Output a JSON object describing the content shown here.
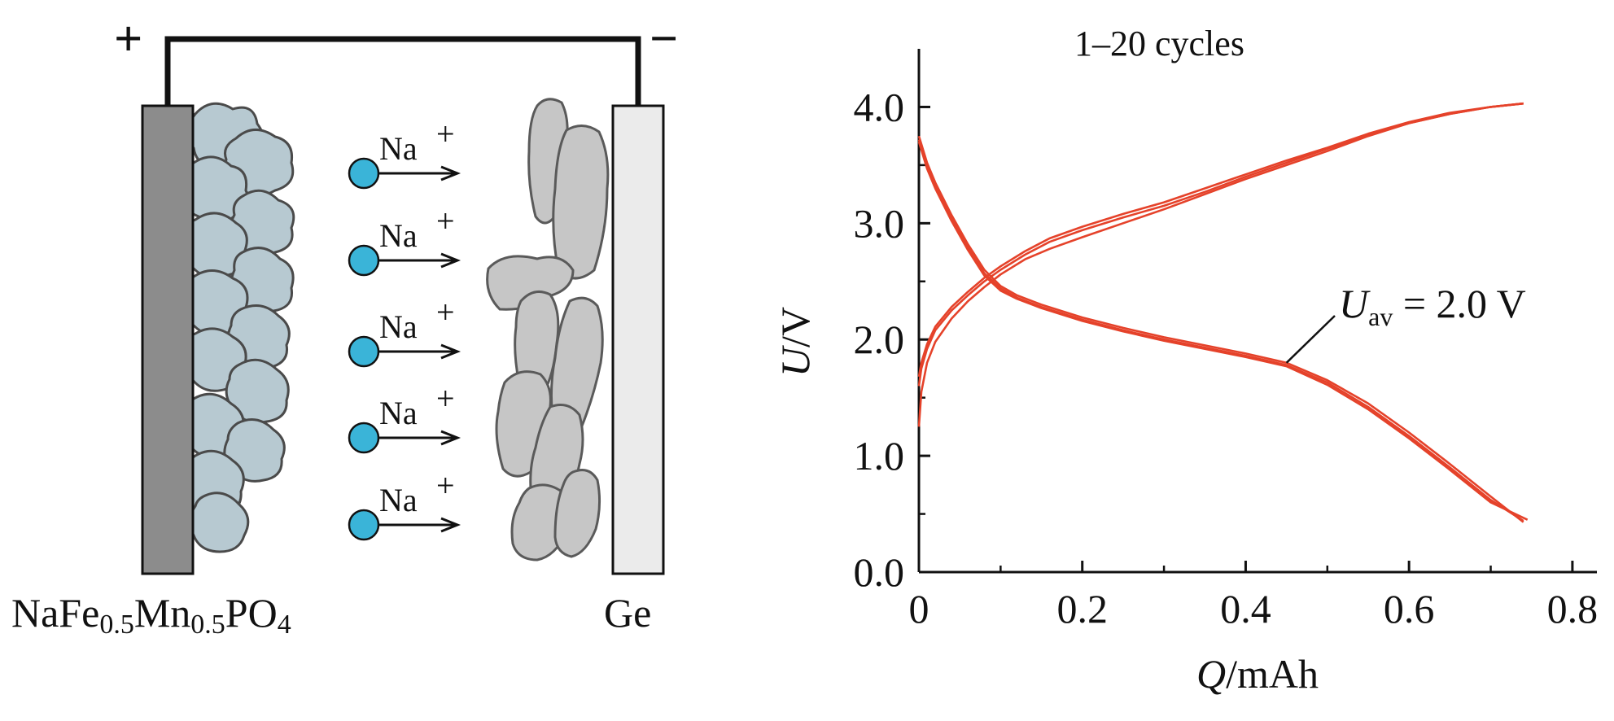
{
  "diagram": {
    "positive_sign": "+",
    "negative_sign": "−",
    "ion_labels": [
      "Na",
      "Na",
      "Na",
      "Na",
      "Na"
    ],
    "ion_charge": "+",
    "cathode_label": {
      "parts": [
        "NaFe",
        "0.5",
        "Mn",
        "0.5",
        "PO",
        "4"
      ]
    },
    "anode_label": "Ge",
    "colors": {
      "cathode_electrode": "#8c8c8c",
      "cathode_particles": "#b7c9d1",
      "anode_electrode": "#ebebeb",
      "anode_particles": "#c6c6c6",
      "ion": "#3ab4d8",
      "wire": "#111111"
    },
    "icon_names": [
      "sodium-ion-icon",
      "arrow-right-icon"
    ]
  },
  "chart_data": {
    "type": "line",
    "title": "1–20 cycles",
    "xlabel": {
      "italic": "Q",
      "rest": "/mAh"
    },
    "ylabel": {
      "italic": "U",
      "rest": "/V"
    },
    "xlim": [
      0,
      0.83
    ],
    "ylim": [
      0,
      4.5
    ],
    "xticks": [
      0,
      0.2,
      0.4,
      0.6,
      0.8
    ],
    "xtick_labels": [
      "0",
      "0.2",
      "0.4",
      "0.6",
      "0.8"
    ],
    "yticks": [
      0,
      1,
      2,
      3,
      4
    ],
    "ytick_labels": [
      "0.0",
      "1.0",
      "2.0",
      "3.0",
      "4.0"
    ],
    "minor_xticks": [
      0.1,
      0.3,
      0.5,
      0.7
    ],
    "minor_yticks": [
      0.5,
      1.5,
      2.5,
      3.5
    ],
    "grid": false,
    "line_color": "#e5422a",
    "annotation": {
      "text_italic": "U",
      "subscript": "av",
      "rest": " = 2.0 V",
      "points_to": {
        "x": 0.45,
        "y": 1.8
      }
    },
    "series": [
      {
        "kind": "charge",
        "x": [
          0,
          0.003,
          0.01,
          0.02,
          0.04,
          0.06,
          0.08,
          0.1,
          0.13,
          0.16,
          0.2,
          0.25,
          0.3,
          0.35,
          0.4,
          0.45,
          0.5,
          0.55,
          0.6,
          0.65,
          0.7,
          0.74
        ],
        "y": [
          1.25,
          1.55,
          1.8,
          1.98,
          2.18,
          2.33,
          2.45,
          2.56,
          2.69,
          2.78,
          2.88,
          3.0,
          3.12,
          3.25,
          3.38,
          3.5,
          3.62,
          3.75,
          3.86,
          3.94,
          4.0,
          4.03
        ]
      },
      {
        "kind": "charge",
        "x": [
          0,
          0.003,
          0.01,
          0.02,
          0.04,
          0.06,
          0.08,
          0.1,
          0.13,
          0.16,
          0.2,
          0.25,
          0.3,
          0.35,
          0.4,
          0.45,
          0.5,
          0.55,
          0.6,
          0.65,
          0.7,
          0.74
        ],
        "y": [
          1.6,
          1.75,
          1.92,
          2.08,
          2.25,
          2.38,
          2.5,
          2.6,
          2.73,
          2.84,
          2.94,
          3.05,
          3.15,
          3.27,
          3.4,
          3.52,
          3.64,
          3.76,
          3.86,
          3.94,
          4.0,
          4.03
        ]
      },
      {
        "kind": "charge",
        "x": [
          0,
          0.003,
          0.01,
          0.02,
          0.04,
          0.06,
          0.08,
          0.1,
          0.13,
          0.16,
          0.2,
          0.25,
          0.3,
          0.35,
          0.4,
          0.45,
          0.5,
          0.55,
          0.6,
          0.65,
          0.7,
          0.74
        ],
        "y": [
          1.68,
          1.8,
          1.96,
          2.11,
          2.28,
          2.41,
          2.53,
          2.63,
          2.76,
          2.87,
          2.97,
          3.08,
          3.18,
          3.3,
          3.42,
          3.54,
          3.65,
          3.77,
          3.87,
          3.95,
          4.0,
          4.03
        ]
      },
      {
        "kind": "discharge",
        "x": [
          0,
          0.01,
          0.02,
          0.04,
          0.06,
          0.08,
          0.1,
          0.12,
          0.15,
          0.2,
          0.25,
          0.3,
          0.35,
          0.4,
          0.45,
          0.5,
          0.55,
          0.6,
          0.65,
          0.7,
          0.74
        ],
        "y": [
          3.75,
          3.52,
          3.35,
          3.07,
          2.82,
          2.6,
          2.46,
          2.38,
          2.3,
          2.19,
          2.1,
          2.02,
          1.95,
          1.88,
          1.8,
          1.65,
          1.45,
          1.2,
          0.93,
          0.65,
          0.43
        ]
      },
      {
        "kind": "discharge",
        "x": [
          0,
          0.01,
          0.02,
          0.04,
          0.06,
          0.08,
          0.1,
          0.12,
          0.15,
          0.2,
          0.25,
          0.3,
          0.35,
          0.4,
          0.45,
          0.5,
          0.55,
          0.6,
          0.65,
          0.7,
          0.74
        ],
        "y": [
          3.72,
          3.49,
          3.32,
          3.04,
          2.79,
          2.57,
          2.44,
          2.36,
          2.28,
          2.17,
          2.08,
          2.0,
          1.93,
          1.86,
          1.78,
          1.63,
          1.42,
          1.17,
          0.9,
          0.62,
          0.44
        ]
      },
      {
        "kind": "discharge",
        "x": [
          0,
          0.01,
          0.02,
          0.04,
          0.06,
          0.08,
          0.1,
          0.12,
          0.15,
          0.2,
          0.25,
          0.3,
          0.35,
          0.4,
          0.45,
          0.5,
          0.55,
          0.6,
          0.65,
          0.7,
          0.745
        ],
        "y": [
          3.7,
          3.47,
          3.3,
          3.02,
          2.77,
          2.55,
          2.42,
          2.35,
          2.27,
          2.16,
          2.07,
          1.99,
          1.92,
          1.85,
          1.77,
          1.61,
          1.4,
          1.15,
          0.88,
          0.6,
          0.45
        ]
      }
    ]
  }
}
